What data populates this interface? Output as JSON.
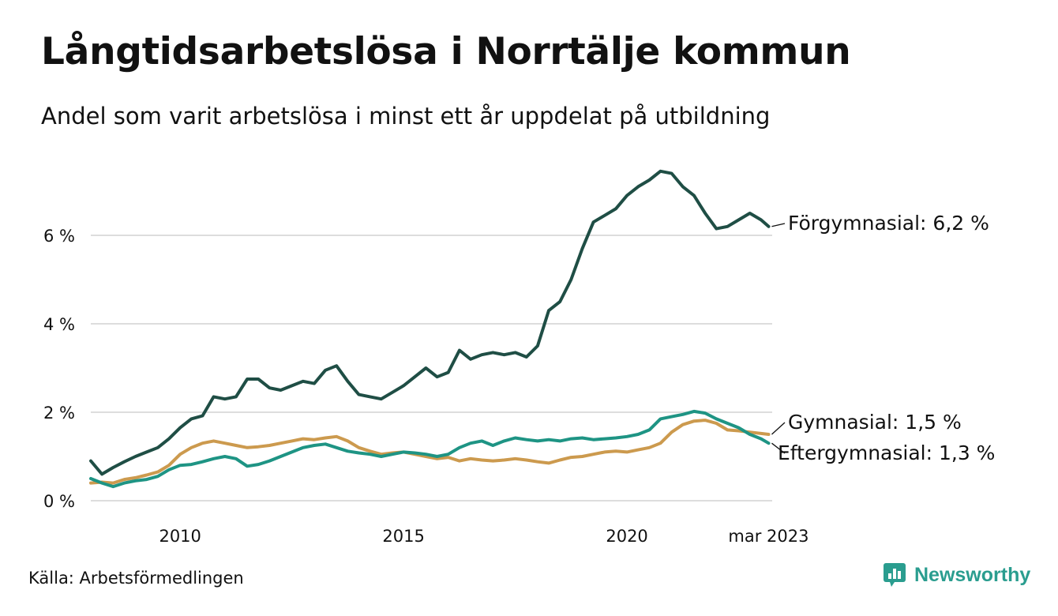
{
  "title": "Långtidsarbetslösa i Norrtälje kommun",
  "subtitle": "Andel som varit arbetslösa i minst ett år uppdelat på utbildning",
  "source": "Källa: Arbetsförmedlingen",
  "brand": {
    "name": "Newsworthy",
    "icon": "newsworthy-logo-icon",
    "color": "#2a9d8f"
  },
  "chart_data": {
    "type": "line",
    "title": "Långtidsarbetslösa i Norrtälje kommun",
    "subtitle": "Andel som varit arbetslösa i minst ett år uppdelat på utbildning",
    "xlabel": "",
    "ylabel": "",
    "ylim": [
      0,
      7.6
    ],
    "xlim": [
      2008.0,
      2023.25
    ],
    "grid": true,
    "legend": "direct-labels-right",
    "y_ticks": [
      {
        "value": 0,
        "label": "0 %"
      },
      {
        "value": 2,
        "label": "2 %"
      },
      {
        "value": 4,
        "label": "4 %"
      },
      {
        "value": 6,
        "label": "6 %"
      }
    ],
    "x_ticks": [
      {
        "value": 2010.0,
        "label": "2010"
      },
      {
        "value": 2015.0,
        "label": "2015"
      },
      {
        "value": 2020.0,
        "label": "2020"
      },
      {
        "value": 2023.17,
        "label": "mar 2023"
      }
    ],
    "series": [
      {
        "name": "Förgymnasial",
        "label": "Förgymnasial: 6,2 %",
        "color": "#1f4e45",
        "x": [
          2008.0,
          2008.25,
          2008.5,
          2008.75,
          2009.0,
          2009.25,
          2009.5,
          2009.75,
          2010.0,
          2010.25,
          2010.5,
          2010.75,
          2011.0,
          2011.25,
          2011.5,
          2011.75,
          2012.0,
          2012.25,
          2012.5,
          2012.75,
          2013.0,
          2013.25,
          2013.5,
          2013.75,
          2014.0,
          2014.25,
          2014.5,
          2014.75,
          2015.0,
          2015.25,
          2015.5,
          2015.75,
          2016.0,
          2016.25,
          2016.5,
          2016.75,
          2017.0,
          2017.25,
          2017.5,
          2017.75,
          2018.0,
          2018.25,
          2018.5,
          2018.75,
          2019.0,
          2019.25,
          2019.5,
          2019.75,
          2020.0,
          2020.25,
          2020.5,
          2020.75,
          2021.0,
          2021.25,
          2021.5,
          2021.75,
          2022.0,
          2022.25,
          2022.5,
          2022.75,
          2023.0,
          2023.17
        ],
        "values": [
          0.9,
          0.6,
          0.75,
          0.88,
          1.0,
          1.1,
          1.2,
          1.4,
          1.65,
          1.85,
          1.92,
          2.35,
          2.3,
          2.35,
          2.75,
          2.75,
          2.55,
          2.5,
          2.6,
          2.7,
          2.65,
          2.95,
          3.05,
          2.7,
          2.4,
          2.35,
          2.3,
          2.45,
          2.6,
          2.8,
          3.0,
          2.8,
          2.9,
          3.4,
          3.2,
          3.3,
          3.35,
          3.3,
          3.35,
          3.25,
          3.5,
          4.3,
          4.5,
          5.0,
          5.7,
          6.3,
          6.45,
          6.6,
          6.9,
          7.1,
          7.25,
          7.45,
          7.4,
          7.1,
          6.9,
          6.5,
          6.15,
          6.2,
          6.35,
          6.5,
          6.35,
          6.2
        ]
      },
      {
        "name": "Gymnasial",
        "label": "Gymnasial: 1,5 %",
        "color": "#cc9a4e",
        "x": [
          2008.0,
          2008.25,
          2008.5,
          2008.75,
          2009.0,
          2009.25,
          2009.5,
          2009.75,
          2010.0,
          2010.25,
          2010.5,
          2010.75,
          2011.0,
          2011.25,
          2011.5,
          2011.75,
          2012.0,
          2012.25,
          2012.5,
          2012.75,
          2013.0,
          2013.25,
          2013.5,
          2013.75,
          2014.0,
          2014.25,
          2014.5,
          2014.75,
          2015.0,
          2015.25,
          2015.5,
          2015.75,
          2016.0,
          2016.25,
          2016.5,
          2016.75,
          2017.0,
          2017.25,
          2017.5,
          2017.75,
          2018.0,
          2018.25,
          2018.5,
          2018.75,
          2019.0,
          2019.25,
          2019.5,
          2019.75,
          2020.0,
          2020.25,
          2020.5,
          2020.75,
          2021.0,
          2021.25,
          2021.5,
          2021.75,
          2022.0,
          2022.25,
          2022.5,
          2022.75,
          2023.0,
          2023.17
        ],
        "values": [
          0.4,
          0.42,
          0.4,
          0.48,
          0.52,
          0.58,
          0.65,
          0.8,
          1.05,
          1.2,
          1.3,
          1.35,
          1.3,
          1.25,
          1.2,
          1.22,
          1.25,
          1.3,
          1.35,
          1.4,
          1.38,
          1.42,
          1.45,
          1.35,
          1.2,
          1.12,
          1.05,
          1.08,
          1.1,
          1.05,
          1.0,
          0.95,
          0.98,
          0.9,
          0.95,
          0.92,
          0.9,
          0.92,
          0.95,
          0.92,
          0.88,
          0.85,
          0.92,
          0.98,
          1.0,
          1.05,
          1.1,
          1.12,
          1.1,
          1.15,
          1.2,
          1.3,
          1.55,
          1.72,
          1.8,
          1.82,
          1.75,
          1.6,
          1.58,
          1.55,
          1.52,
          1.5
        ]
      },
      {
        "name": "Eftergymnasial",
        "label": "Eftergymnasial: 1,3 %",
        "color": "#1e9484",
        "x": [
          2008.0,
          2008.25,
          2008.5,
          2008.75,
          2009.0,
          2009.25,
          2009.5,
          2009.75,
          2010.0,
          2010.25,
          2010.5,
          2010.75,
          2011.0,
          2011.25,
          2011.5,
          2011.75,
          2012.0,
          2012.25,
          2012.5,
          2012.75,
          2013.0,
          2013.25,
          2013.5,
          2013.75,
          2014.0,
          2014.25,
          2014.5,
          2014.75,
          2015.0,
          2015.25,
          2015.5,
          2015.75,
          2016.0,
          2016.25,
          2016.5,
          2016.75,
          2017.0,
          2017.25,
          2017.5,
          2017.75,
          2018.0,
          2018.25,
          2018.5,
          2018.75,
          2019.0,
          2019.25,
          2019.5,
          2019.75,
          2020.0,
          2020.25,
          2020.5,
          2020.75,
          2021.0,
          2021.25,
          2021.5,
          2021.75,
          2022.0,
          2022.25,
          2022.5,
          2022.75,
          2023.0,
          2023.17
        ],
        "values": [
          0.5,
          0.4,
          0.32,
          0.4,
          0.45,
          0.48,
          0.55,
          0.7,
          0.8,
          0.82,
          0.88,
          0.95,
          1.0,
          0.95,
          0.78,
          0.82,
          0.9,
          1.0,
          1.1,
          1.2,
          1.25,
          1.28,
          1.2,
          1.12,
          1.08,
          1.05,
          1.0,
          1.05,
          1.1,
          1.08,
          1.05,
          1.0,
          1.05,
          1.2,
          1.3,
          1.35,
          1.25,
          1.35,
          1.42,
          1.38,
          1.35,
          1.38,
          1.35,
          1.4,
          1.42,
          1.38,
          1.4,
          1.42,
          1.45,
          1.5,
          1.6,
          1.85,
          1.9,
          1.95,
          2.02,
          1.98,
          1.85,
          1.75,
          1.65,
          1.5,
          1.4,
          1.3
        ]
      }
    ]
  }
}
